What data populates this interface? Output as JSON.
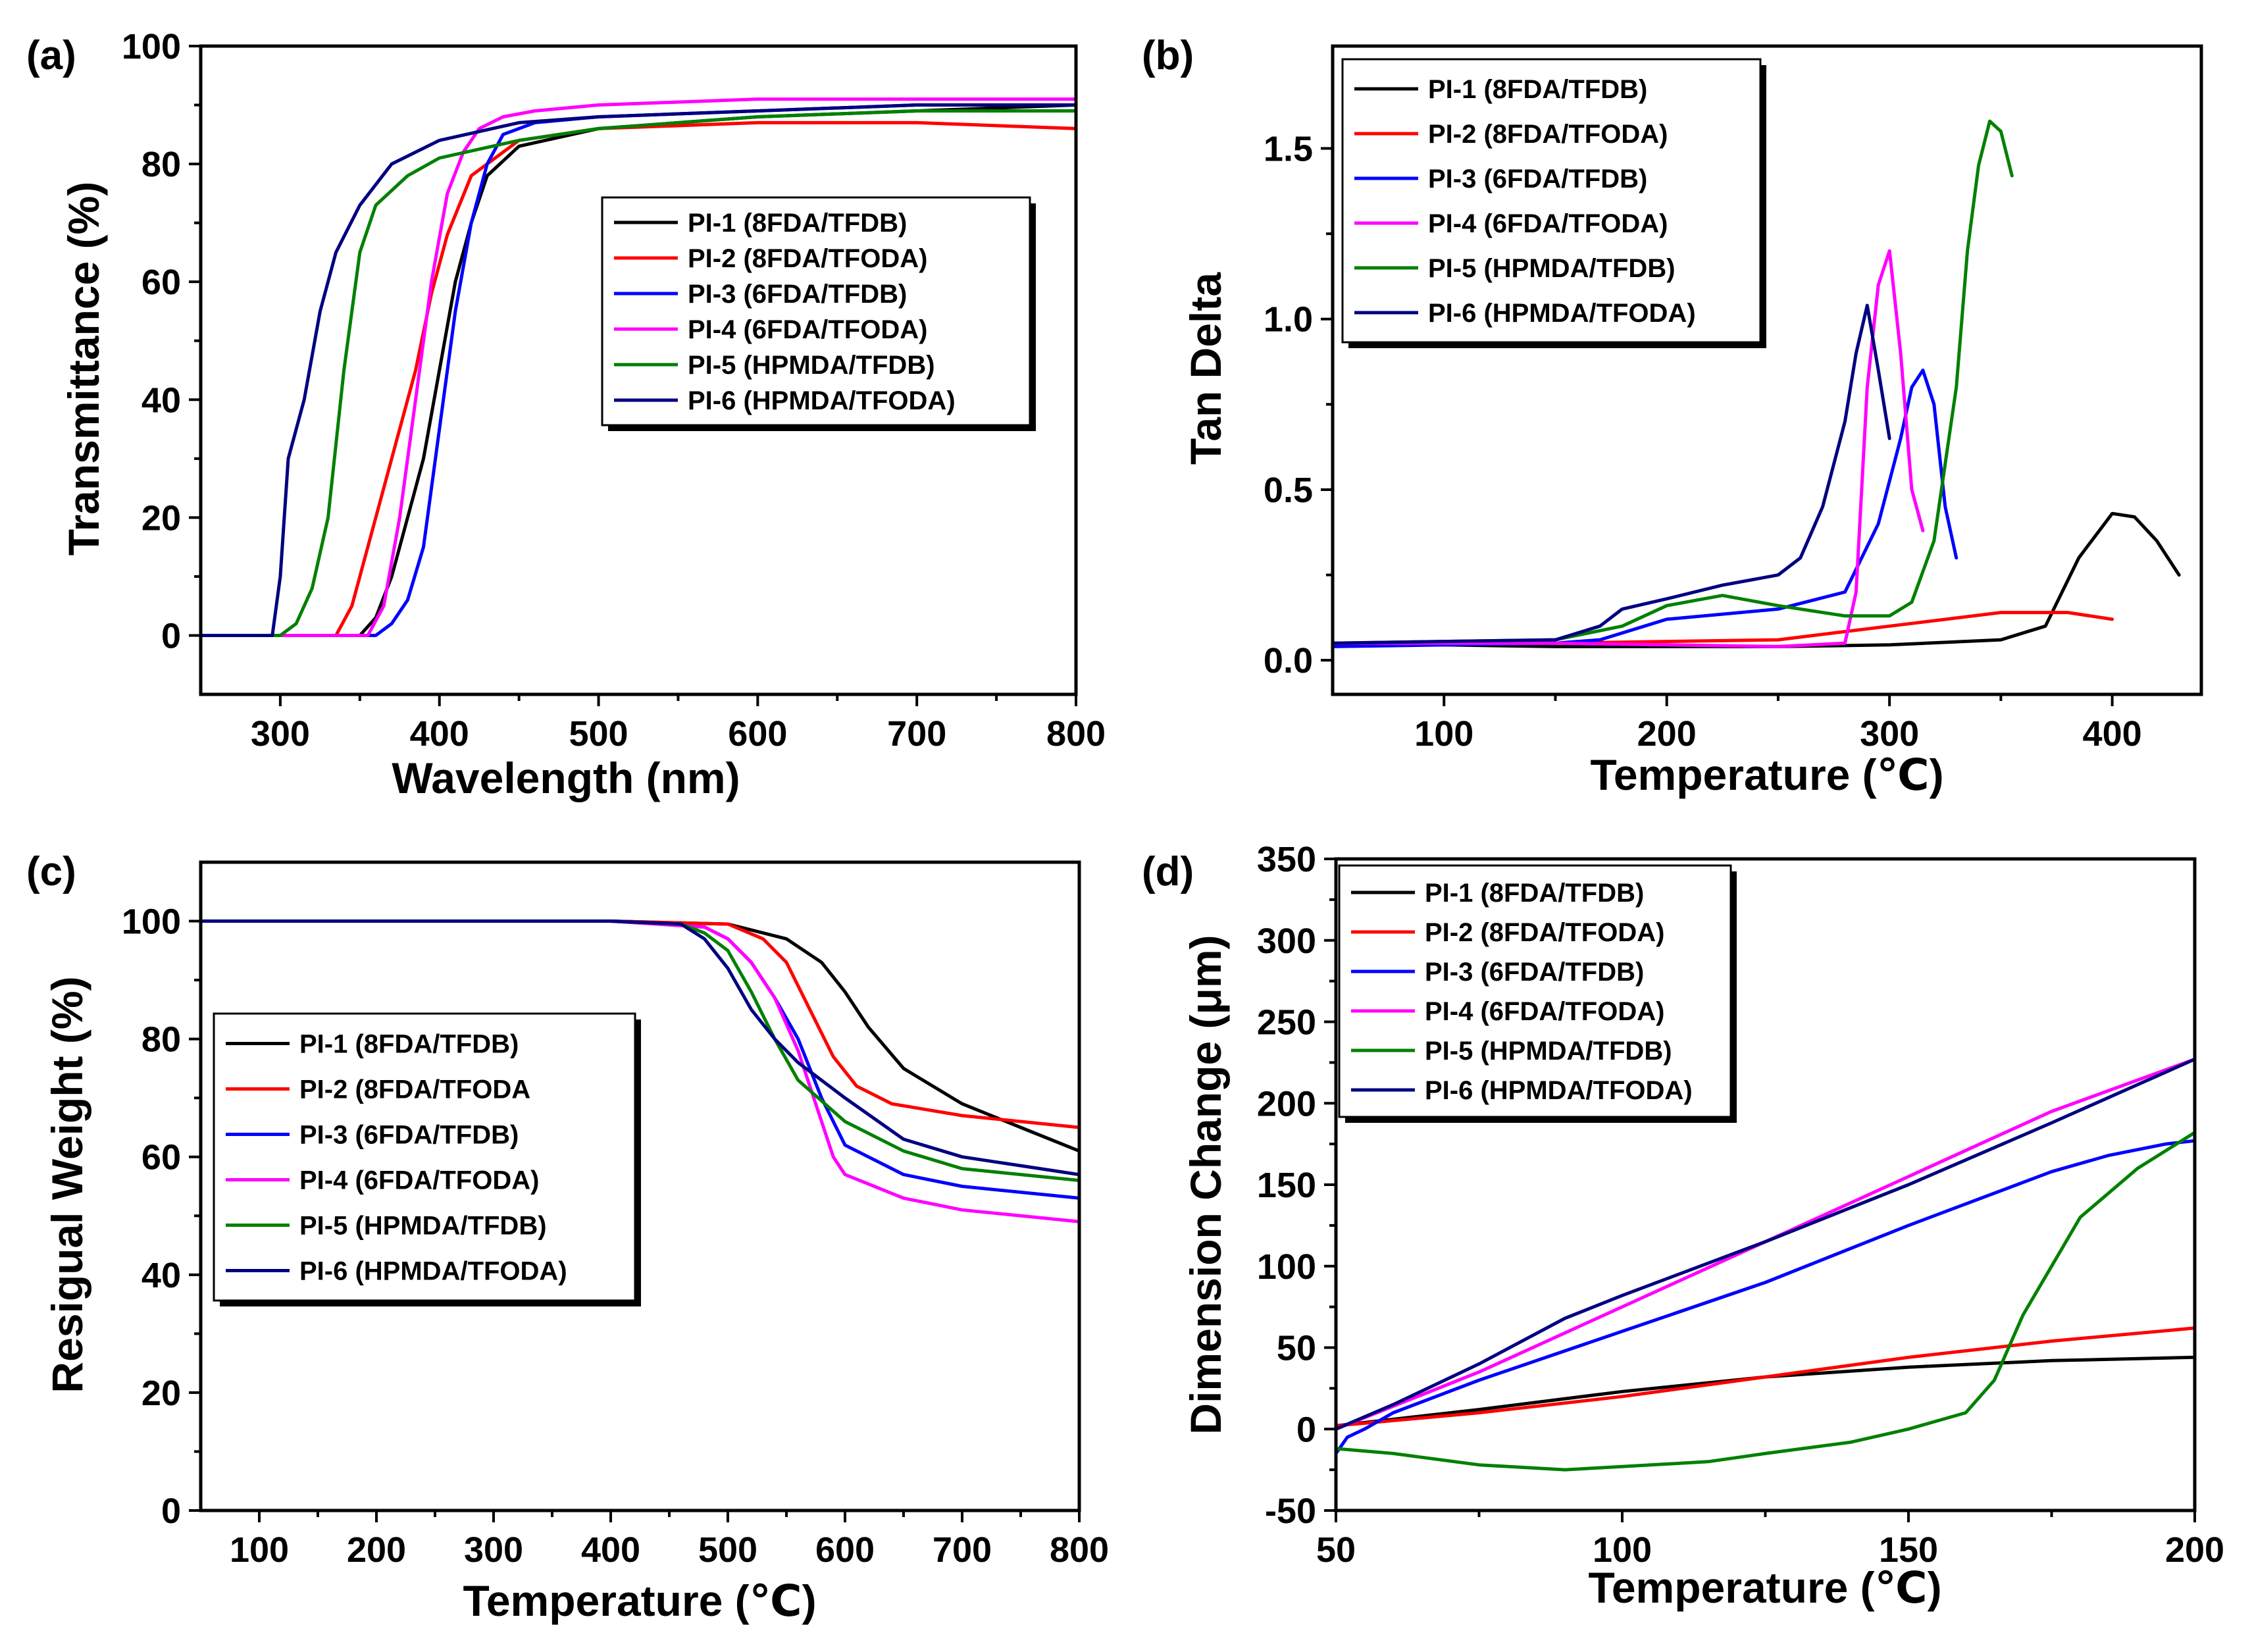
{
  "colors": {
    "PI-1": "#000000",
    "PI-2": "#ff0000",
    "PI-3": "#0000ff",
    "PI-4": "#ff00ff",
    "PI-5": "#008000",
    "PI-6": "#000080"
  },
  "chart_data": [
    {
      "id": "a",
      "panel_label": "(a)",
      "type": "line",
      "xlabel": "Wavelength (nm)",
      "ylabel": "Transmittance (%)",
      "xlim": [
        250,
        800
      ],
      "ylim": [
        -10,
        100
      ],
      "xticks": [
        300,
        400,
        500,
        600,
        700,
        800
      ],
      "yticks": [
        0,
        20,
        40,
        60,
        80,
        100
      ],
      "legend_position": "center-right",
      "series": [
        {
          "name": "PI-1 (8FDA/TFDB)",
          "key": "PI-1",
          "x": [
            250,
            350,
            360,
            370,
            380,
            390,
            400,
            410,
            420,
            430,
            450,
            500,
            600,
            700,
            800
          ],
          "y": [
            0,
            0,
            3,
            10,
            20,
            30,
            45,
            60,
            70,
            78,
            83,
            86,
            88,
            89,
            90
          ]
        },
        {
          "name": "PI-2 (8FDA/TFODA)",
          "key": "PI-2",
          "x": [
            250,
            335,
            345,
            355,
            365,
            375,
            385,
            395,
            405,
            420,
            450,
            500,
            600,
            700,
            800
          ],
          "y": [
            0,
            0,
            5,
            15,
            25,
            35,
            45,
            58,
            68,
            78,
            84,
            86,
            87,
            87,
            86
          ]
        },
        {
          "name": "PI-3 (6FDA/TFDB)",
          "key": "PI-3",
          "x": [
            250,
            360,
            370,
            380,
            390,
            400,
            410,
            420,
            430,
            440,
            460,
            500,
            600,
            700,
            800
          ],
          "y": [
            0,
            0,
            2,
            6,
            15,
            35,
            55,
            70,
            80,
            85,
            87,
            88,
            89,
            90,
            90
          ]
        },
        {
          "name": "PI-4 (6FDA/TFODA)",
          "key": "PI-4",
          "x": [
            250,
            355,
            365,
            375,
            385,
            395,
            405,
            415,
            425,
            440,
            460,
            500,
            600,
            700,
            800
          ],
          "y": [
            0,
            0,
            5,
            20,
            40,
            60,
            75,
            82,
            86,
            88,
            89,
            90,
            91,
            91,
            91
          ]
        },
        {
          "name": "PI-5 (HPMDA/TFDB)",
          "key": "PI-5",
          "x": [
            250,
            300,
            310,
            320,
            330,
            340,
            350,
            360,
            380,
            400,
            450,
            500,
            600,
            700,
            800
          ],
          "y": [
            0,
            0,
            2,
            8,
            20,
            45,
            65,
            73,
            78,
            81,
            84,
            86,
            88,
            89,
            89
          ]
        },
        {
          "name": "PI-6 (HPMDA/TFODA)",
          "key": "PI-6",
          "x": [
            250,
            295,
            300,
            305,
            315,
            325,
            335,
            350,
            370,
            400,
            450,
            500,
            600,
            700,
            800
          ],
          "y": [
            0,
            0,
            10,
            30,
            40,
            55,
            65,
            73,
            80,
            84,
            87,
            88,
            89,
            90,
            90
          ]
        }
      ]
    },
    {
      "id": "b",
      "panel_label": "(b)",
      "type": "line",
      "xlabel": "Temperature (℃)",
      "ylabel": "Tan Delta",
      "xlim": [
        50,
        440
      ],
      "ylim": [
        -0.1,
        1.8
      ],
      "xticks": [
        100,
        200,
        300,
        400
      ],
      "yticks": [
        0.0,
        0.5,
        1.0,
        1.5
      ],
      "ytick_labels": [
        "0.0",
        "0.5",
        "1.0",
        "1.5"
      ],
      "legend_position": "top-left",
      "series": [
        {
          "name": "PI-1 (8FDA/TFDB)",
          "key": "PI-1",
          "x": [
            50,
            150,
            250,
            300,
            350,
            370,
            385,
            400,
            410,
            420,
            430
          ],
          "y": [
            0.05,
            0.04,
            0.04,
            0.045,
            0.06,
            0.1,
            0.3,
            0.43,
            0.42,
            0.35,
            0.25
          ]
        },
        {
          "name": "PI-2 (8FDA/TFODA)",
          "key": "PI-2",
          "x": [
            50,
            150,
            250,
            300,
            350,
            380,
            400
          ],
          "y": [
            0.05,
            0.05,
            0.06,
            0.1,
            0.14,
            0.14,
            0.12
          ]
        },
        {
          "name": "PI-3 (6FDA/TFDB)",
          "key": "PI-3",
          "x": [
            50,
            150,
            170,
            200,
            250,
            280,
            295,
            305,
            310,
            315,
            320,
            325,
            330
          ],
          "y": [
            0.04,
            0.05,
            0.06,
            0.12,
            0.15,
            0.2,
            0.4,
            0.65,
            0.8,
            0.85,
            0.75,
            0.45,
            0.3
          ]
        },
        {
          "name": "PI-4 (6FDA/TFODA)",
          "key": "PI-4",
          "x": [
            50,
            150,
            250,
            280,
            285,
            290,
            295,
            300,
            305,
            310,
            315
          ],
          "y": [
            0.05,
            0.05,
            0.04,
            0.05,
            0.2,
            0.8,
            1.1,
            1.2,
            0.9,
            0.5,
            0.38
          ]
        },
        {
          "name": "PI-5 (HPMDA/TFDB)",
          "key": "PI-5",
          "x": [
            50,
            150,
            180,
            200,
            225,
            250,
            280,
            300,
            310,
            320,
            330,
            335,
            340,
            345,
            350,
            355
          ],
          "y": [
            0.05,
            0.06,
            0.1,
            0.16,
            0.19,
            0.16,
            0.13,
            0.13,
            0.17,
            0.35,
            0.8,
            1.2,
            1.45,
            1.58,
            1.55,
            1.42
          ]
        },
        {
          "name": "PI-6 (HPMDA/TFODA)",
          "key": "PI-6",
          "x": [
            50,
            150,
            170,
            180,
            200,
            225,
            250,
            260,
            270,
            280,
            285,
            290,
            295,
            300
          ],
          "y": [
            0.05,
            0.06,
            0.1,
            0.15,
            0.18,
            0.22,
            0.25,
            0.3,
            0.45,
            0.7,
            0.9,
            1.04,
            0.85,
            0.65
          ]
        }
      ]
    },
    {
      "id": "c",
      "panel_label": "(c)",
      "type": "line",
      "xlabel": "Temperature (℃)",
      "ylabel": "Resigual Weight  (%)",
      "xlim": [
        50,
        800
      ],
      "ylim": [
        0,
        110
      ],
      "xticks": [
        100,
        200,
        300,
        400,
        500,
        600,
        700,
        800
      ],
      "yticks": [
        0,
        20,
        40,
        60,
        80,
        100
      ],
      "legend_position": "center-left",
      "series": [
        {
          "name": "PI-1 (8FDA/TFDB)",
          "key": "PI-1",
          "x": [
            50,
            200,
            400,
            500,
            550,
            580,
            600,
            620,
            650,
            700,
            750,
            800
          ],
          "y": [
            100,
            100,
            100,
            99.5,
            97,
            93,
            88,
            82,
            75,
            69,
            65,
            61
          ]
        },
        {
          "name": "PI-2 (8FDA/TFODA",
          "key": "PI-2",
          "x": [
            50,
            200,
            400,
            500,
            530,
            550,
            570,
            590,
            610,
            640,
            700,
            800
          ],
          "y": [
            100,
            100,
            100,
            99.5,
            97,
            93,
            85,
            77,
            72,
            69,
            67,
            65
          ]
        },
        {
          "name": "PI-3 (6FDA/TFDB)",
          "key": "PI-3",
          "x": [
            50,
            200,
            400,
            480,
            500,
            520,
            540,
            560,
            580,
            600,
            650,
            700,
            800
          ],
          "y": [
            100,
            100,
            100,
            99,
            97,
            93,
            87,
            80,
            70,
            62,
            57,
            55,
            53
          ]
        },
        {
          "name": "PI-4 (6FDA/TFODA)",
          "key": "PI-4",
          "x": [
            50,
            200,
            400,
            480,
            500,
            520,
            540,
            560,
            580,
            590,
            600,
            650,
            700,
            800
          ],
          "y": [
            100,
            100,
            100,
            99,
            97,
            93,
            87,
            78,
            66,
            60,
            57,
            53,
            51,
            49
          ]
        },
        {
          "name": "PI-5 (HPMDA/TFDB)",
          "key": "PI-5",
          "x": [
            50,
            200,
            400,
            460,
            480,
            500,
            520,
            540,
            560,
            600,
            650,
            700,
            800
          ],
          "y": [
            100,
            100,
            100,
            99.5,
            98,
            95,
            88,
            80,
            73,
            66,
            61,
            58,
            56
          ]
        },
        {
          "name": "PI-6 (HPMDA/TFODA)",
          "key": "PI-6",
          "x": [
            50,
            200,
            400,
            460,
            480,
            500,
            520,
            540,
            560,
            600,
            650,
            700,
            800
          ],
          "y": [
            100,
            100,
            100,
            99.5,
            97,
            92,
            85,
            80,
            76,
            70,
            63,
            60,
            57
          ]
        }
      ]
    },
    {
      "id": "d",
      "panel_label": "(d)",
      "type": "line",
      "xlabel": "Temperature (℃)",
      "ylabel": "Dimension Change (μm)",
      "xlim": [
        50,
        200
      ],
      "ylim": [
        -50,
        350
      ],
      "xticks": [
        50,
        100,
        150,
        200
      ],
      "yticks": [
        -50,
        0,
        50,
        100,
        150,
        200,
        250,
        300,
        350
      ],
      "legend_position": "top-left",
      "series": [
        {
          "name": "PI-1 (8FDA/TFDB)",
          "key": "PI-1",
          "x": [
            50,
            75,
            100,
            125,
            150,
            175,
            200
          ],
          "y": [
            2,
            12,
            23,
            32,
            38,
            42,
            44
          ]
        },
        {
          "name": "PI-2 (8FDA/TFODA)",
          "key": "PI-2",
          "x": [
            50,
            75,
            100,
            125,
            150,
            175,
            200
          ],
          "y": [
            2,
            10,
            20,
            32,
            44,
            54,
            62
          ]
        },
        {
          "name": "PI-3 (6FDA/TFDB)",
          "key": "PI-3",
          "x": [
            50,
            52,
            55,
            60,
            75,
            100,
            125,
            150,
            175,
            185,
            195,
            200
          ],
          "y": [
            -15,
            -5,
            0,
            10,
            30,
            60,
            90,
            125,
            158,
            168,
            175,
            177
          ]
        },
        {
          "name": "PI-4 (6FDA/TFODA)",
          "key": "PI-4",
          "x": [
            50,
            75,
            100,
            125,
            150,
            175,
            200
          ],
          "y": [
            0,
            35,
            75,
            115,
            155,
            195,
            227
          ]
        },
        {
          "name": "PI-5 (HPMDA/TFDB)",
          "key": "PI-5",
          "x": [
            50,
            60,
            75,
            90,
            100,
            115,
            125,
            140,
            150,
            160,
            165,
            170,
            175,
            180,
            190,
            200
          ],
          "y": [
            -12,
            -15,
            -22,
            -25,
            -23,
            -20,
            -15,
            -8,
            0,
            10,
            30,
            70,
            100,
            130,
            160,
            182
          ]
        },
        {
          "name": "PI-6 (HPMDA/TFODA)",
          "key": "PI-6",
          "x": [
            50,
            60,
            75,
            90,
            100,
            125,
            150,
            175,
            200
          ],
          "y": [
            0,
            15,
            40,
            68,
            82,
            115,
            150,
            188,
            227
          ]
        }
      ]
    }
  ]
}
